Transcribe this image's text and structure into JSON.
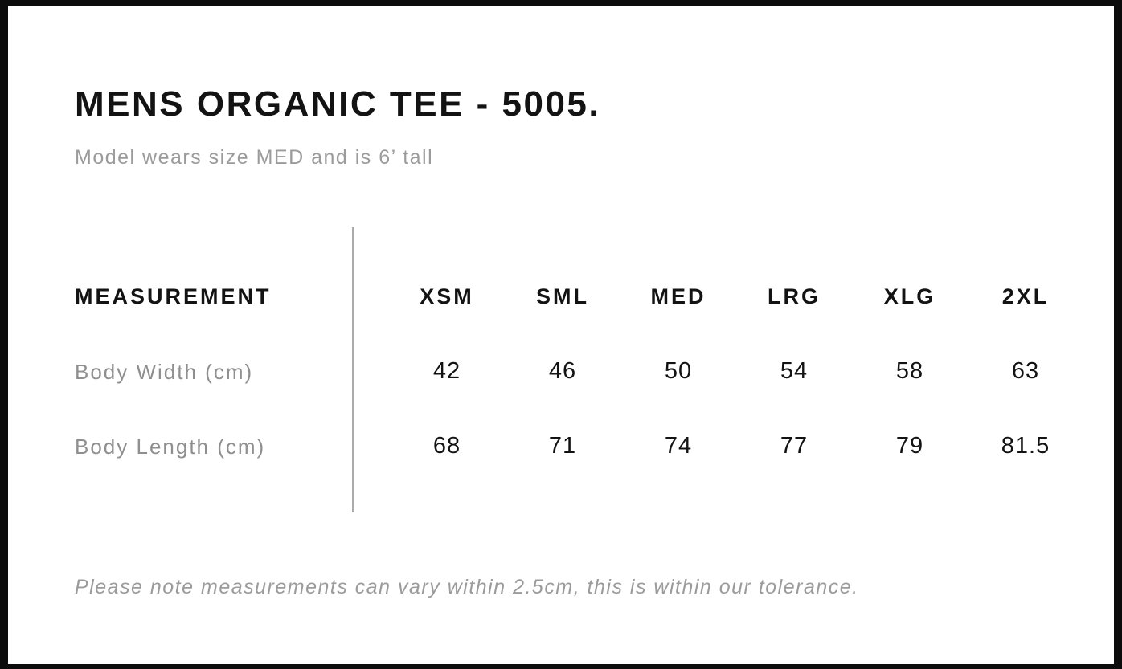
{
  "product": {
    "title": "MENS ORGANIC TEE - 5005.",
    "model_note": "Model wears size MED and is 6’ tall"
  },
  "size_chart": {
    "measurement_header": "MEASUREMENT",
    "size_headers": [
      "XSM",
      "SML",
      "MED",
      "LRG",
      "XLG",
      "2XL"
    ],
    "rows": [
      {
        "label": "Body Width (cm)",
        "values": [
          "42",
          "46",
          "50",
          "54",
          "58",
          "63"
        ]
      },
      {
        "label": "Body Length (cm)",
        "values": [
          "68",
          "71",
          "74",
          "77",
          "79",
          "81.5"
        ]
      }
    ]
  },
  "footnote": "Please note measurements can vary within 2.5cm, this is within our tolerance.",
  "colors": {
    "text_primary": "#131313",
    "text_muted": "#9b9b9b",
    "row_label_gray": "#8f8f8f",
    "divider_gray": "#ababab",
    "frame_black": "#0c0c0c"
  }
}
